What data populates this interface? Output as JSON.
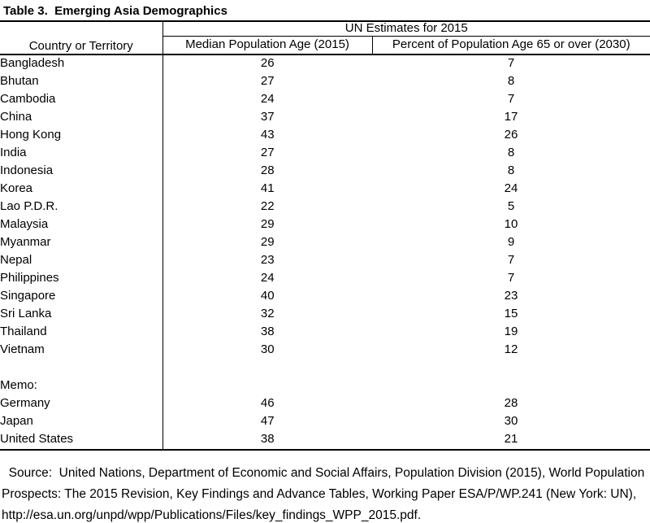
{
  "title": "Table 3.  Emerging Asia Demographics",
  "table": {
    "group_header": "UN Estimates for 2015",
    "columns": [
      "Country or Territory",
      "Median Population Age (2015)",
      "Percent of Population Age 65 or over (2030)"
    ],
    "rows": [
      {
        "country": "Bangladesh",
        "median_age": "26",
        "pct_65_over_2030": "7"
      },
      {
        "country": "Bhutan",
        "median_age": "27",
        "pct_65_over_2030": "8"
      },
      {
        "country": "Cambodia",
        "median_age": "24",
        "pct_65_over_2030": "7"
      },
      {
        "country": "China",
        "median_age": "37",
        "pct_65_over_2030": "17"
      },
      {
        "country": "Hong Kong",
        "median_age": "43",
        "pct_65_over_2030": "26"
      },
      {
        "country": "India",
        "median_age": "27",
        "pct_65_over_2030": "8"
      },
      {
        "country": "Indonesia",
        "median_age": "28",
        "pct_65_over_2030": "8"
      },
      {
        "country": "Korea",
        "median_age": "41",
        "pct_65_over_2030": "24"
      },
      {
        "country": "Lao P.D.R.",
        "median_age": "22",
        "pct_65_over_2030": "5"
      },
      {
        "country": "Malaysia",
        "median_age": "29",
        "pct_65_over_2030": "10"
      },
      {
        "country": "Myanmar",
        "median_age": "29",
        "pct_65_over_2030": "9"
      },
      {
        "country": "Nepal",
        "median_age": "23",
        "pct_65_over_2030": "7"
      },
      {
        "country": "Philippines",
        "median_age": "24",
        "pct_65_over_2030": "7"
      },
      {
        "country": "Singapore",
        "median_age": "40",
        "pct_65_over_2030": "23"
      },
      {
        "country": "Sri Lanka",
        "median_age": "32",
        "pct_65_over_2030": "15"
      },
      {
        "country": "Thailand",
        "median_age": "38",
        "pct_65_over_2030": "19"
      },
      {
        "country": "Vietnam",
        "median_age": "30",
        "pct_65_over_2030": "12"
      },
      {
        "country": "",
        "median_age": "",
        "pct_65_over_2030": ""
      },
      {
        "country": "Memo:",
        "median_age": "",
        "pct_65_over_2030": ""
      },
      {
        "country": "Germany",
        "median_age": "46",
        "pct_65_over_2030": "28"
      },
      {
        "country": "Japan",
        "median_age": "47",
        "pct_65_over_2030": "30"
      },
      {
        "country": "United States",
        "median_age": "38",
        "pct_65_over_2030": "21"
      }
    ]
  },
  "source": "  Source:  United Nations, Department of Economic and Social Affairs, Population Division (2015), World Population Prospects: The 2015 Revision, Key Findings and Advance Tables, Working Paper ESA/P/WP.241 (New York: UN), http://esa.un.org/unpd/wpp/Publications/Files/key_findings_WPP_2015.pdf.",
  "colors": {
    "text": "#000000",
    "background": "#ffffff",
    "border": "#000000"
  }
}
